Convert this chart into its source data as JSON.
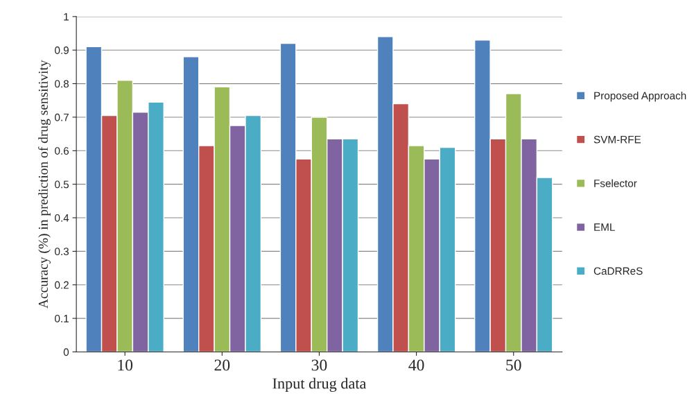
{
  "chart_data": {
    "type": "bar",
    "xlabel": "Input drug data",
    "ylabel": "Accuracy (%) in prediction of drug sensitivity",
    "categories": [
      "10",
      "20",
      "30",
      "40",
      "50"
    ],
    "series": [
      {
        "name": "Proposed Approach",
        "color": "#4f81bd",
        "values": [
          0.91,
          0.88,
          0.92,
          0.94,
          0.93
        ]
      },
      {
        "name": "SVM-RFE",
        "color": "#c0504d",
        "values": [
          0.705,
          0.615,
          0.575,
          0.74,
          0.635
        ]
      },
      {
        "name": "Fselector",
        "color": "#9bbb59",
        "values": [
          0.81,
          0.79,
          0.7,
          0.615,
          0.77
        ]
      },
      {
        "name": "EML",
        "color": "#8064a2",
        "values": [
          0.715,
          0.675,
          0.635,
          0.575,
          0.635
        ]
      },
      {
        "name": "CaDRReS",
        "color": "#4bacc6",
        "values": [
          0.745,
          0.705,
          0.635,
          0.61,
          0.52
        ]
      }
    ],
    "ylim": [
      0,
      1
    ],
    "yticks": [
      0,
      0.1,
      0.2,
      0.3,
      0.4,
      0.5,
      0.6,
      0.7,
      0.8,
      0.9,
      1
    ],
    "grid": "y",
    "legend": "right"
  }
}
